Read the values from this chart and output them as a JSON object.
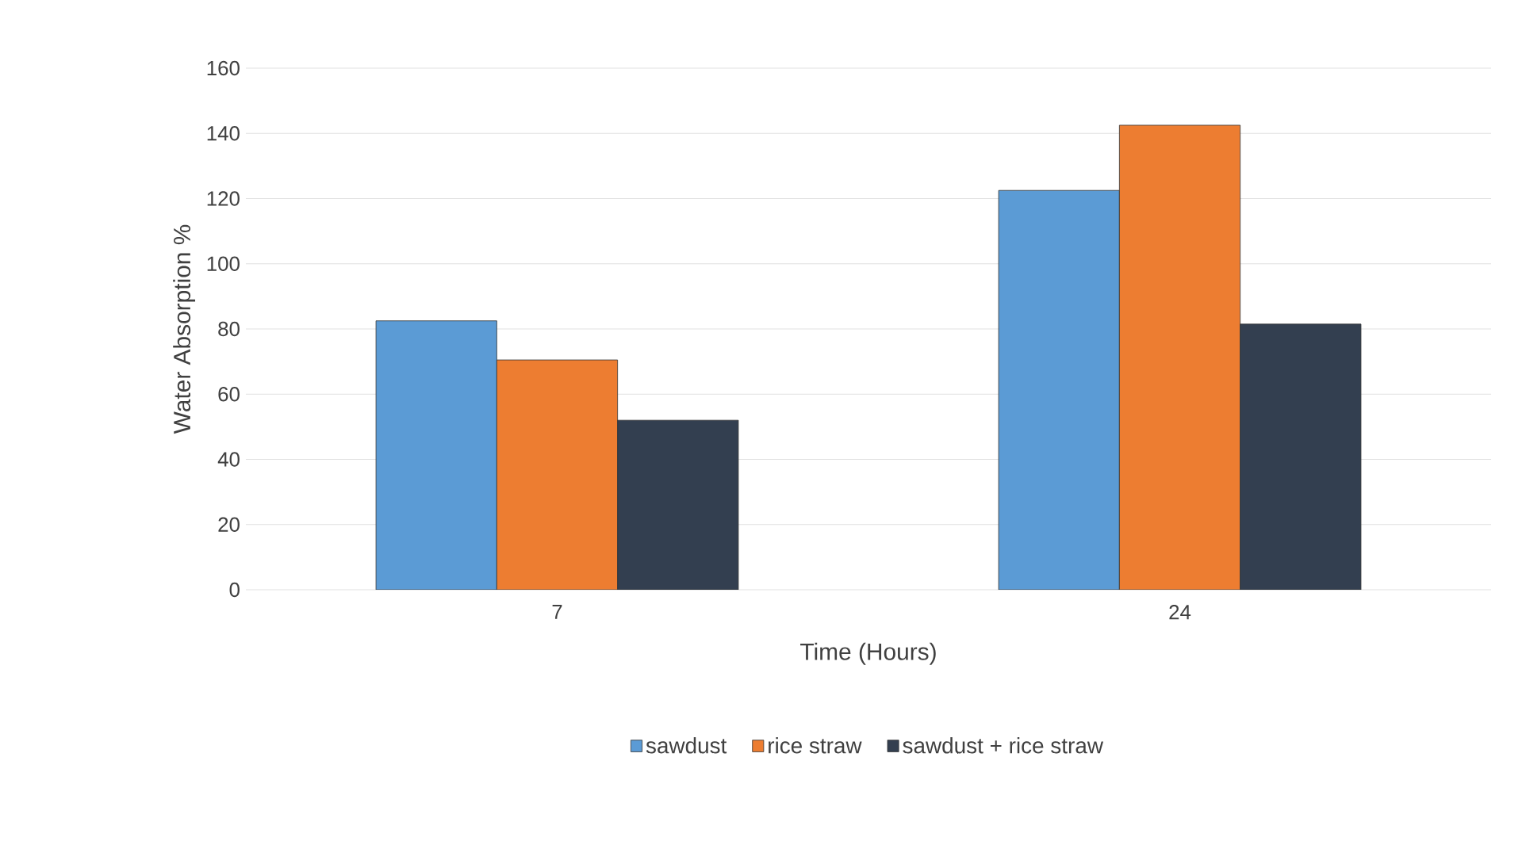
{
  "chart_data": {
    "type": "bar",
    "xlabel": "Time (Hours)",
    "ylabel": "Water Absorption %",
    "categories": [
      "7",
      "24"
    ],
    "series": [
      {
        "name": "sawdust",
        "color": "#5b9bd5",
        "values": [
          82.5,
          122.5
        ]
      },
      {
        "name": "rice straw",
        "color": "#ed7d31",
        "values": [
          70.5,
          142.5
        ]
      },
      {
        "name": "sawdust + rice straw",
        "color": "#333f50",
        "values": [
          52,
          81.5
        ]
      }
    ],
    "ylim": [
      0,
      160
    ],
    "yticks": [
      0,
      20,
      40,
      60,
      80,
      100,
      120,
      140,
      160
    ],
    "grid": "y",
    "legend": "bottom"
  }
}
